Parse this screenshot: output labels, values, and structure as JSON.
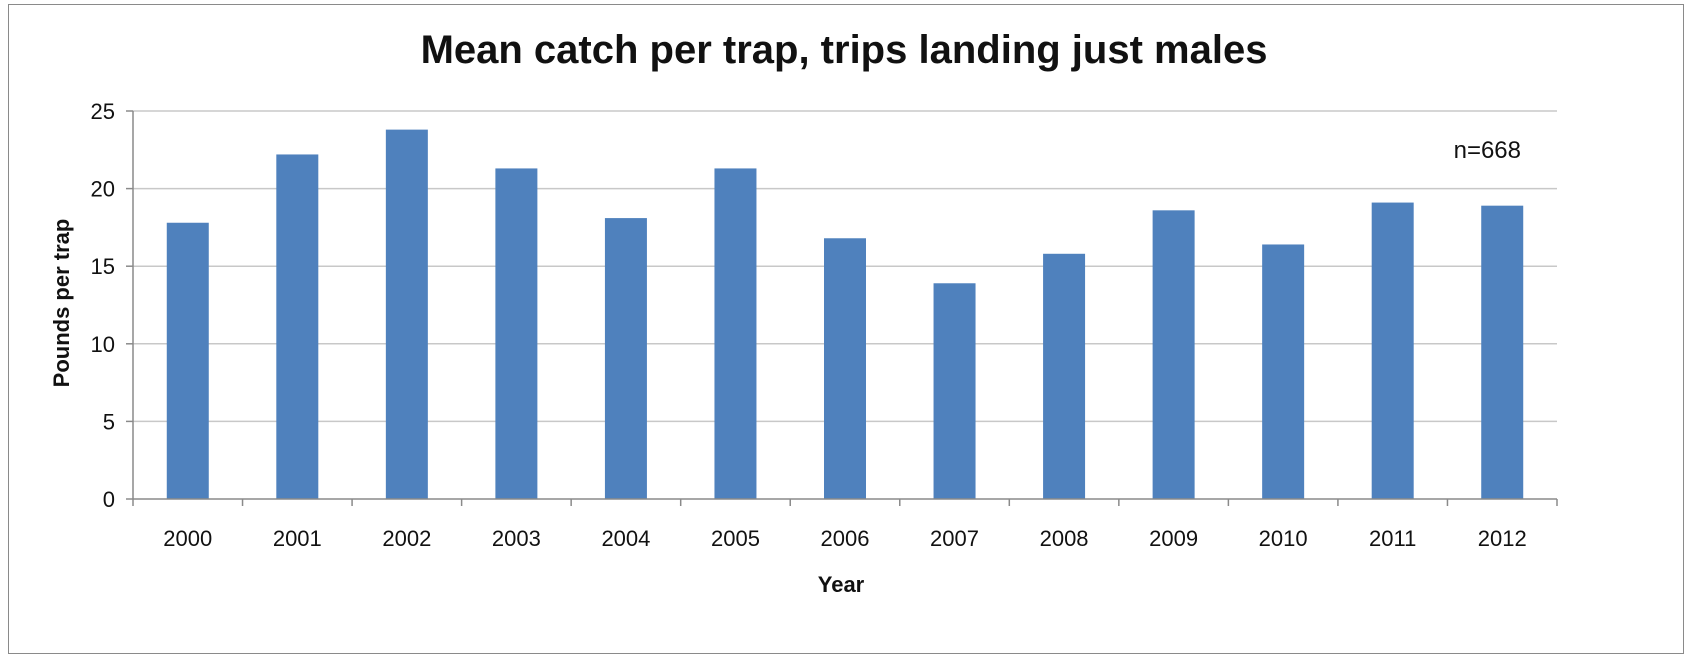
{
  "chart_data": {
    "type": "bar",
    "title": "Mean catch per trap, trips landing just males",
    "xlabel": "Year",
    "ylabel": "Pounds per trap",
    "categories": [
      "2000",
      "2001",
      "2002",
      "2003",
      "2004",
      "2005",
      "2006",
      "2007",
      "2008",
      "2009",
      "2010",
      "2011",
      "2012"
    ],
    "values": [
      17.8,
      22.2,
      23.8,
      21.3,
      18.1,
      21.3,
      16.8,
      13.9,
      15.8,
      18.6,
      16.4,
      19.1,
      18.9
    ],
    "ylim": [
      0,
      25
    ],
    "yticks": [
      0,
      5,
      10,
      15,
      20,
      25
    ],
    "grid": true,
    "legend": "none",
    "annotation": "n=668",
    "bar_color": "#4f81bd"
  }
}
